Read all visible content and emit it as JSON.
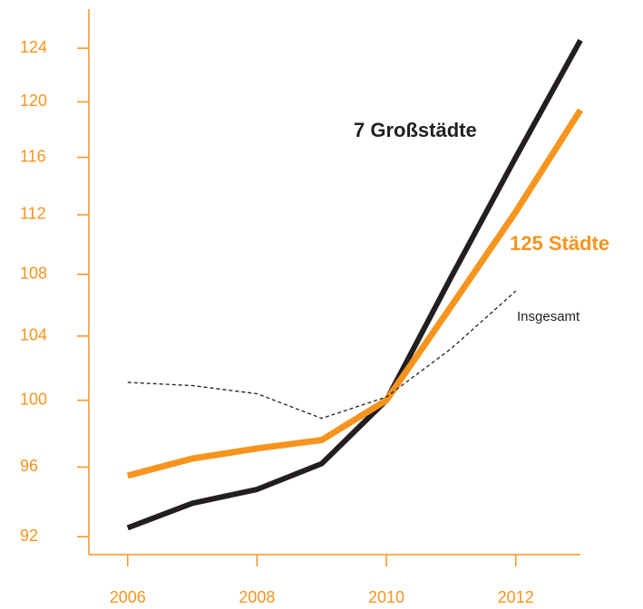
{
  "chart_data": {
    "type": "line",
    "log_y": true,
    "x": [
      2006,
      2007,
      2008,
      2009,
      2010,
      2011,
      2012,
      2013
    ],
    "series": [
      {
        "name": "7 Großstädte",
        "color": "#231f20",
        "values": [
          92.5,
          93.9,
          94.7,
          96.2,
          100,
          107.8,
          116.0,
          124.6
        ]
      },
      {
        "name": "125 Städte",
        "color": "#f7941d",
        "values": [
          95.5,
          96.5,
          97.1,
          97.6,
          100,
          105.9,
          112.2,
          119.4
        ]
      },
      {
        "name": "Insgesamt",
        "color": "#231f20",
        "dashed": true,
        "values": [
          101.1,
          100.9,
          100.4,
          98.9,
          100.2,
          103.2,
          106.9,
          null
        ]
      }
    ],
    "xlim": [
      2005.4,
      2013
    ],
    "xticks": [
      2006,
      2008,
      2010,
      2012
    ],
    "ylim": [
      91,
      127
    ],
    "yticks": [
      92,
      96,
      100,
      104,
      108,
      112,
      116,
      120,
      124
    ],
    "axis_color": "#f7941d"
  }
}
